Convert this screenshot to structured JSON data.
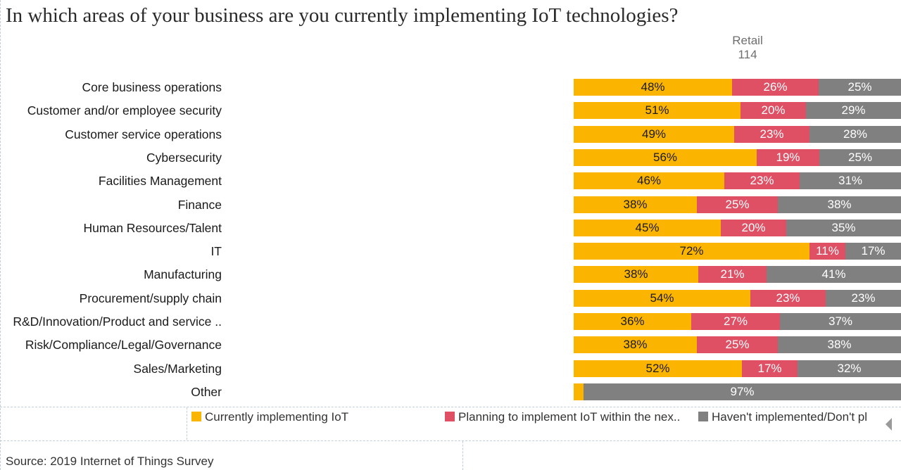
{
  "title": "In which areas of your business are you currently implementing IoT technologies?",
  "column_header": {
    "label": "Retail",
    "count": "114"
  },
  "colors": {
    "currently": "#fbb501",
    "planning": "#df5065",
    "none": "#808080"
  },
  "chart_data": {
    "type": "bar",
    "orientation": "horizontal",
    "stacked": true,
    "normalized": true,
    "categories": [
      "Core business operations",
      "Customer and/or employee security",
      "Customer service operations",
      "Cybersecurity",
      "Facilities Management",
      "Finance",
      "Human Resources/Talent",
      "IT",
      "Manufacturing",
      "Procurement/supply chain",
      "R&D/Innovation/Product and service ..",
      "Risk/Compliance/Legal/Governance",
      "Sales/Marketing",
      "Other"
    ],
    "series": [
      {
        "name": "Currently implementing IoT",
        "color": "#fbb501",
        "values": [
          48,
          51,
          49,
          56,
          46,
          38,
          45,
          72,
          38,
          54,
          36,
          38,
          52,
          3
        ],
        "labels": [
          "48%",
          "51%",
          "49%",
          "56%",
          "46%",
          "38%",
          "45%",
          "72%",
          "38%",
          "54%",
          "36%",
          "38%",
          "52%",
          ""
        ]
      },
      {
        "name": "Planning to implement IoT within the nex..",
        "color": "#df5065",
        "values": [
          26,
          20,
          23,
          19,
          23,
          25,
          20,
          11,
          21,
          23,
          27,
          25,
          17,
          0
        ],
        "labels": [
          "26%",
          "20%",
          "23%",
          "19%",
          "23%",
          "25%",
          "20%",
          "11%",
          "21%",
          "23%",
          "27%",
          "25%",
          "17%",
          ""
        ]
      },
      {
        "name": "Haven't implemented/Don't pl",
        "color": "#808080",
        "values": [
          25,
          29,
          28,
          25,
          31,
          38,
          35,
          17,
          41,
          23,
          37,
          38,
          32,
          97
        ],
        "labels": [
          "25%",
          "29%",
          "28%",
          "25%",
          "31%",
          "38%",
          "35%",
          "17%",
          "41%",
          "23%",
          "37%",
          "38%",
          "32%",
          "97%"
        ]
      }
    ],
    "xlim": [
      0,
      100
    ],
    "column": "Retail",
    "legend_position": "bottom"
  },
  "source": "Source: 2019 Internet of Things Survey"
}
